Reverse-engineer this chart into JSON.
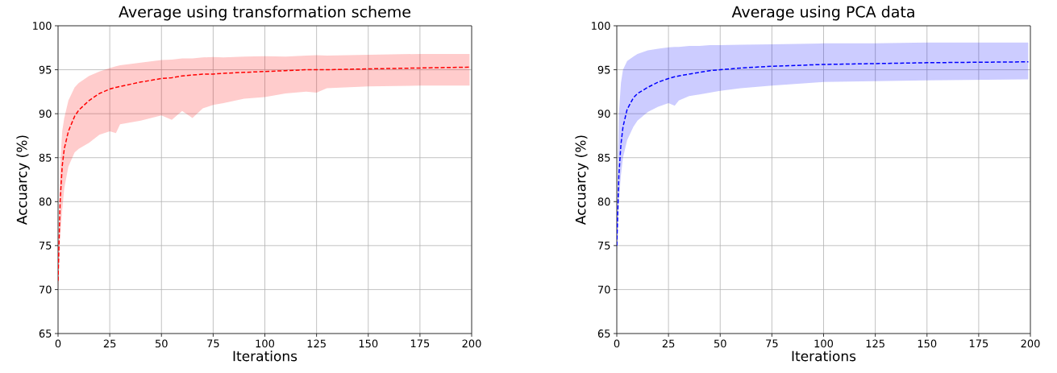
{
  "chart_data": [
    {
      "type": "line",
      "title": "Average using transformation scheme",
      "xlabel": "Iterations",
      "ylabel": "Accuarcy (%)",
      "xlim": [
        0,
        200
      ],
      "ylim": [
        65,
        100
      ],
      "xticks": [
        0,
        25,
        50,
        75,
        100,
        125,
        150,
        175,
        200
      ],
      "yticks": [
        65,
        70,
        75,
        80,
        85,
        90,
        95,
        100
      ],
      "grid": true,
      "line_style": "dashed",
      "series": [
        {
          "color": "#ff0000",
          "x": [
            0,
            1,
            2,
            3,
            5,
            8,
            10,
            15,
            20,
            25,
            28,
            30,
            40,
            50,
            55,
            60,
            65,
            70,
            75,
            80,
            90,
            100,
            110,
            120,
            125,
            130,
            150,
            175,
            199
          ],
          "values": [
            71,
            80,
            84,
            86,
            88,
            89.7,
            90.4,
            91.5,
            92.3,
            92.8,
            93,
            93.1,
            93.6,
            94,
            94.1,
            94.3,
            94.4,
            94.5,
            94.5,
            94.6,
            94.7,
            94.8,
            94.9,
            95,
            95,
            95,
            95.1,
            95.2,
            95.3
          ],
          "lower": [
            70,
            76,
            79,
            81.5,
            84,
            85.6,
            86,
            86.7,
            87.6,
            88,
            87.8,
            88.8,
            89.2,
            89.8,
            89.3,
            90.3,
            89.5,
            90.6,
            91,
            91.2,
            91.7,
            91.9,
            92.3,
            92.5,
            92.4,
            92.9,
            93.1,
            93.2,
            93.2
          ],
          "upper": [
            72,
            84,
            88,
            89.5,
            91.5,
            93,
            93.5,
            94.3,
            94.8,
            95.2,
            95.4,
            95.5,
            95.8,
            96.1,
            96.15,
            96.3,
            96.3,
            96.4,
            96.45,
            96.4,
            96.5,
            96.55,
            96.5,
            96.6,
            96.65,
            96.6,
            96.7,
            96.8,
            96.8
          ]
        }
      ]
    },
    {
      "type": "line",
      "title": "Average using PCA data",
      "xlabel": "Iterations",
      "ylabel": "Accuarcy (%)",
      "xlim": [
        0,
        200
      ],
      "ylim": [
        65,
        100
      ],
      "xticks": [
        0,
        25,
        50,
        75,
        100,
        125,
        150,
        175,
        200
      ],
      "yticks": [
        65,
        70,
        75,
        80,
        85,
        90,
        95,
        100
      ],
      "grid": true,
      "line_style": "dashed",
      "series": [
        {
          "color": "#0000ff",
          "x": [
            0,
            1,
            2,
            3,
            5,
            8,
            10,
            15,
            20,
            25,
            28,
            30,
            35,
            40,
            45,
            50,
            60,
            75,
            100,
            125,
            150,
            199
          ],
          "values": [
            75,
            83,
            86.5,
            88.5,
            90.5,
            91.8,
            92.3,
            93,
            93.6,
            94,
            94.2,
            94.3,
            94.5,
            94.7,
            94.9,
            95,
            95.2,
            95.4,
            95.6,
            95.7,
            95.8,
            95.9
          ],
          "lower": [
            74,
            80,
            83,
            85,
            87,
            88.5,
            89.2,
            90.2,
            90.8,
            91.2,
            90.9,
            91.5,
            92,
            92.2,
            92.4,
            92.6,
            92.9,
            93.2,
            93.6,
            93.7,
            93.8,
            93.9
          ],
          "upper": [
            76,
            90,
            93.5,
            95,
            96,
            96.5,
            96.8,
            97.2,
            97.4,
            97.55,
            97.6,
            97.6,
            97.7,
            97.7,
            97.8,
            97.8,
            97.85,
            97.9,
            98,
            98,
            98.1,
            98.1
          ]
        }
      ]
    }
  ]
}
